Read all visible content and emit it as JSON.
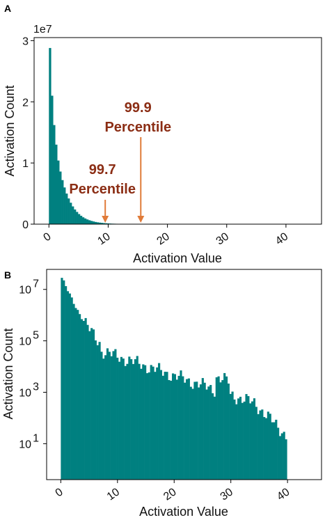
{
  "figure": {
    "label_a": "A",
    "label_b": "B"
  },
  "chart_data": [
    {
      "type": "bar",
      "panel": "A",
      "xlabel": "Activation Value",
      "ylabel": "Activation Count",
      "y_multiplier_label": "1e7",
      "xlim": [
        -2.5,
        46
      ],
      "ylim": [
        0,
        3.05
      ],
      "x_ticks": [
        0,
        10,
        20,
        30,
        40
      ],
      "x_tick_labels": [
        "0",
        "10",
        "20",
        "30",
        "40"
      ],
      "y_ticks": [
        0,
        1,
        2,
        3
      ],
      "y_tick_labels": [
        "0",
        "1",
        "2",
        "3"
      ],
      "bin_width": 0.35,
      "bin_start": 0,
      "values_1e7": [
        2.88,
        2.1,
        1.62,
        1.3,
        1.04,
        0.86,
        0.72,
        0.6,
        0.5,
        0.42,
        0.35,
        0.29,
        0.24,
        0.2,
        0.165,
        0.137,
        0.112,
        0.093,
        0.077,
        0.064,
        0.053,
        0.044,
        0.036,
        0.03,
        0.025,
        0.021,
        0.017,
        0.014,
        0.012,
        0.01,
        0.008,
        0.007,
        0.006
      ],
      "annotations": [
        {
          "line1": "99.7",
          "line2": "Percentile",
          "x": 9.5
        },
        {
          "line1": "99.9",
          "line2": "Percentile",
          "x": 15.5
        }
      ],
      "color": "#008080",
      "arrow_color": "#e07b39"
    },
    {
      "type": "bar",
      "panel": "B",
      "xlabel": "Activation Value",
      "ylabel": "Activation Count",
      "yscale": "log",
      "xlim": [
        -2.5,
        46
      ],
      "ylim": [
        0.4,
        60000000
      ],
      "x_ticks": [
        0,
        10,
        20,
        30,
        40
      ],
      "x_tick_labels": [
        "0",
        "10",
        "20",
        "30",
        "40"
      ],
      "y_ticks": [
        10,
        1000,
        100000,
        10000000
      ],
      "y_tick_base": [
        "10",
        "10",
        "10",
        "10"
      ],
      "y_tick_exp": [
        "1",
        "3",
        "5",
        "7"
      ],
      "bin_width": 0.35,
      "bin_start": 0,
      "color": "#008080"
    }
  ]
}
